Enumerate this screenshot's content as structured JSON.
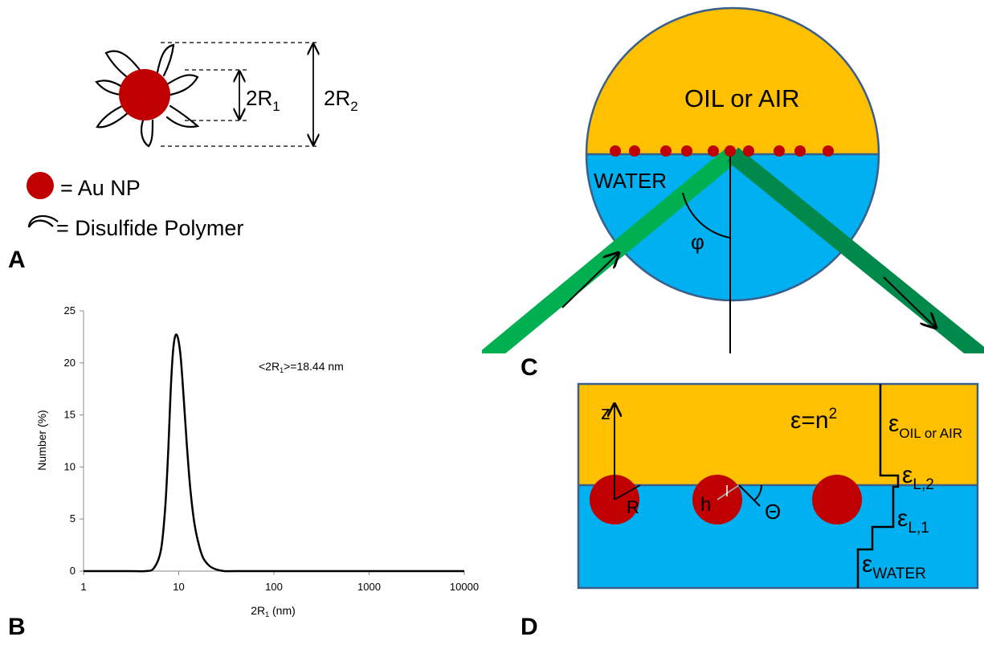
{
  "panel_labels": {
    "a": "A",
    "b": "B",
    "c": "C",
    "d": "D"
  },
  "panel_a": {
    "inner_sub_base": "2R",
    "inner_sub_index": "1",
    "outer_sub_base": "2R",
    "outer_sub_index": "2",
    "legend_np": "= Au NP",
    "legend_polymer": "= Disulfide Polymer",
    "colors": {
      "nanoparticle": "#c00000"
    }
  },
  "panel_c": {
    "oil_label": "OIL or AIR",
    "water_label": "WATER",
    "angle_label": "φ",
    "colors": {
      "oil": "#ffc000",
      "water": "#00b0f0",
      "beam": "#00b050",
      "beam_out": "#00894a",
      "particle": "#c00000"
    }
  },
  "panel_d": {
    "z_label": "z",
    "eps_symbol": "ε",
    "eps_eq": "=n",
    "eps_eq_power": "2",
    "eps_oil_sub": "OIL or AIR",
    "eps_l2_sub": "L,2",
    "eps_l1_sub": "L,1",
    "eps_water_sub": "WATER",
    "r_label": "R",
    "h_label": "h",
    "theta_label": "Θ"
  },
  "chart_data": {
    "type": "line",
    "x_scale": "log",
    "xlim": [
      1,
      10000
    ],
    "ylim": [
      0,
      25
    ],
    "xticks": [
      1,
      10,
      100,
      1000,
      10000
    ],
    "xtick_labels": [
      "1",
      "10",
      "100",
      "1000",
      "10000"
    ],
    "yticks": [
      0,
      5,
      10,
      15,
      20,
      25
    ],
    "ytick_labels": [
      "0",
      "5",
      "10",
      "15",
      "20",
      "25"
    ],
    "xlabel_base": "2R",
    "xlabel_sub": "1",
    "xlabel_unit": " (nm)",
    "ylabel": "Number (%)",
    "annotation_pre": "<2R",
    "annotation_sub": "1",
    "annotation_post": ">=18.44 nm",
    "series": [
      {
        "x": [
          1,
          3,
          4.5,
          5.5,
          6.5,
          7.2,
          7.8,
          8.2,
          8.7,
          9.2,
          9.8,
          10.5,
          11.3,
          12.2,
          13.2,
          14.5,
          16,
          18,
          21,
          25,
          30,
          40,
          100,
          1000,
          10000
        ],
        "y": [
          0,
          0,
          0,
          0.3,
          2,
          6,
          12,
          17,
          21,
          22.6,
          22.4,
          20.5,
          16.5,
          12,
          8,
          4.8,
          2.8,
          1.3,
          0.5,
          0.15,
          0,
          0,
          0,
          0,
          0
        ]
      }
    ]
  }
}
